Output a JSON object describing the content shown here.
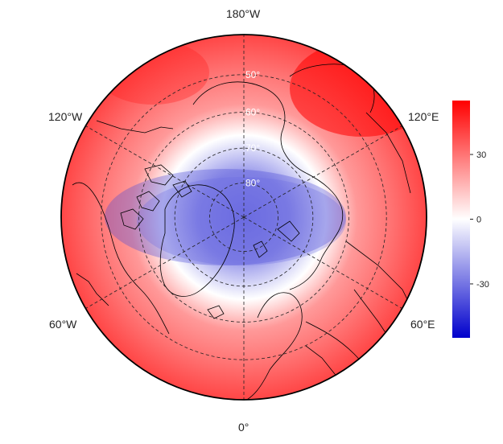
{
  "map": {
    "projection": "north-polar-stereographic",
    "lon_labels": {
      "top": "180°W",
      "upper_left": "120°W",
      "upper_right": "120°E",
      "lower_left": "60°W",
      "lower_right": "60°E",
      "bottom": "0°"
    },
    "lat_labels": [
      "50°",
      "60°",
      "70°",
      "80°"
    ],
    "lat_circles": [
      50,
      60,
      70,
      80
    ],
    "meridians": [
      0,
      60,
      120,
      180,
      240,
      300
    ],
    "field": {
      "description": "",
      "pole_value": -35,
      "edge_value": 40
    },
    "colors": {
      "low": "#0000cc",
      "mid": "#ffffff",
      "high": "#ff0000",
      "grid": "#222222",
      "coast": "#000000",
      "boundary": "#000000"
    }
  },
  "colorbar": {
    "min": -55,
    "max": 55,
    "ticks": [
      {
        "value": 30,
        "label": "30"
      },
      {
        "value": 0,
        "label": "0"
      },
      {
        "value": -30,
        "label": "-30"
      }
    ]
  }
}
